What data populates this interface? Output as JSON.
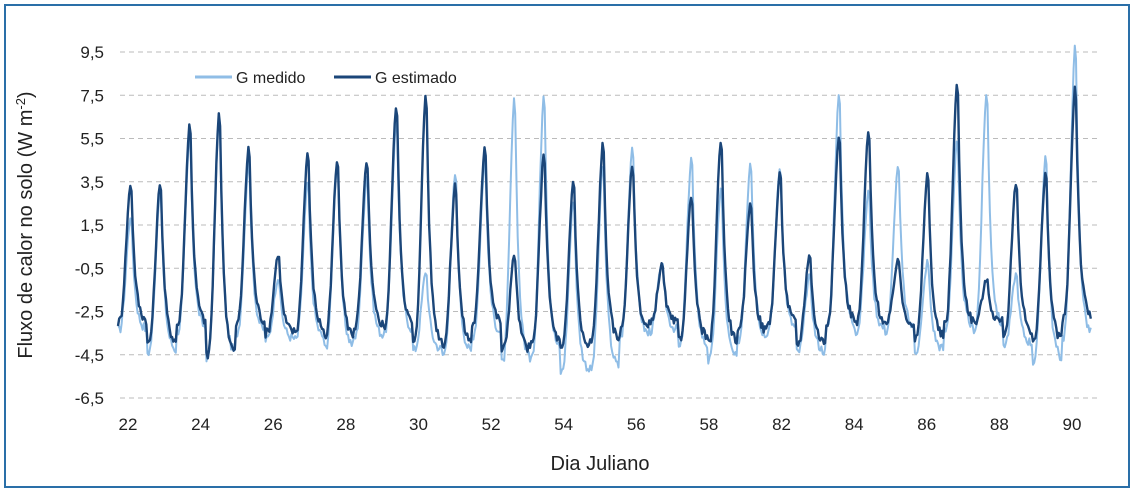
{
  "chart_data": {
    "type": "line",
    "xlabel": "Dia Juliano",
    "ylabel": "Fluxo de calor no solo (W m",
    "ylabel_sup": "-2",
    "ylabel_close": ")",
    "yticks": [
      "9,5",
      "7,5",
      "5,5",
      "3,5",
      "1,5",
      "-0,5",
      "-2,5",
      "-4,5",
      "-6,5"
    ],
    "ylim": [
      -6.5,
      9.5
    ],
    "xticks": [
      "22",
      "24",
      "26",
      "28",
      "30",
      "52",
      "54",
      "56",
      "58",
      "82",
      "84",
      "86",
      "88",
      "90"
    ],
    "grid": "horizontal dashed",
    "legend_position": "top-left",
    "colors": {
      "measured": "#8fbde6",
      "estimated": "#1b4679",
      "grid": "#bbbbbb",
      "frame": "#2a6fa8"
    },
    "series": [
      {
        "name": "G medido",
        "color": "#8fbde6",
        "daily_max": [
          2.0,
          3.3,
          5.7,
          6.7,
          4.5,
          -0.9,
          3.6,
          4.5,
          3.9,
          6.5,
          -0.6,
          4.0,
          4.6,
          7.5,
          7.8,
          2.8,
          4.4,
          5.3,
          -0.2,
          4.8,
          3.4,
          4.6,
          4.3,
          -0.8,
          7.7,
          3.2,
          4.4,
          -0.1,
          5.5,
          7.8,
          -0.7,
          4.9,
          10.0
        ],
        "daily_min": [
          -3.4,
          -4.4,
          -3.4,
          -4.6,
          -3.5,
          -3.8,
          -3.8,
          -4.2,
          -3.7,
          -3.5,
          -4.3,
          -4.5,
          -3.6,
          -4.9,
          -4.4,
          -5.3,
          -5.2,
          -3.7,
          -3.4,
          -4.2,
          -4.8,
          -3.8,
          -3.4,
          -4.4,
          -3.3,
          -3.4,
          -3.4,
          -4.3,
          -3.4,
          -3.3,
          -4.0,
          -4.8,
          -3.7
        ]
      },
      {
        "name": "G estimado",
        "color": "#1b4679",
        "daily_max": [
          3.5,
          3.6,
          6.3,
          6.9,
          5.2,
          0.2,
          5.0,
          4.6,
          4.6,
          7.2,
          7.7,
          3.5,
          5.3,
          0.2,
          5.0,
          3.7,
          5.4,
          4.4,
          -0.3,
          3.0,
          5.6,
          2.7,
          4.0,
          0.2,
          5.8,
          6.0,
          0.0,
          4.0,
          8.2,
          -1.0,
          3.6,
          4.1,
          8.1
        ],
        "daily_min": [
          -3.0,
          -4.0,
          -3.1,
          -4.6,
          -3.1,
          -3.5,
          -3.4,
          -3.7,
          -3.2,
          -3.2,
          -4.0,
          -4.0,
          -3.1,
          -4.3,
          -4.0,
          -4.3,
          -3.9,
          -3.4,
          -3.1,
          -3.8,
          -4.0,
          -3.5,
          -3.1,
          -4.0,
          -3.0,
          -3.1,
          -3.1,
          -3.8,
          -3.1,
          -3.0,
          -3.5,
          -3.9,
          -2.9
        ]
      }
    ]
  }
}
